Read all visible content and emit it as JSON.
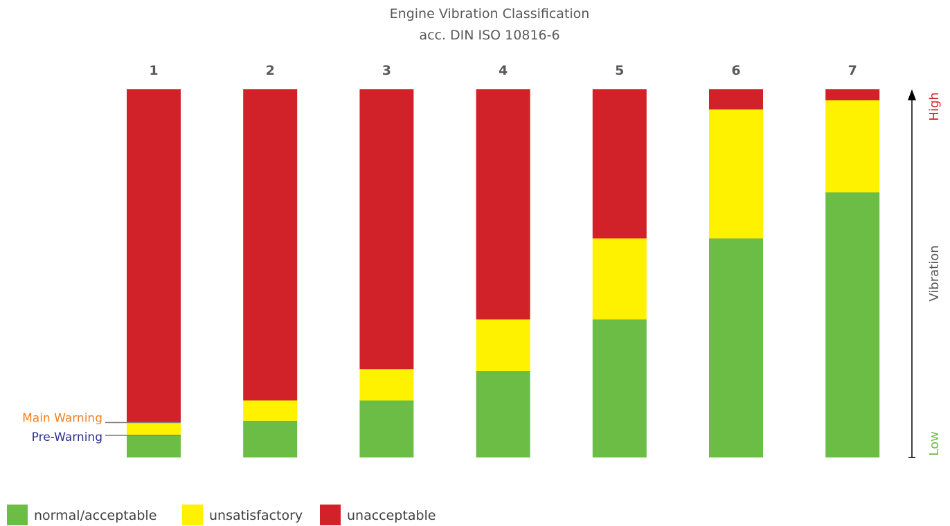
{
  "chart_data": {
    "type": "bar",
    "stacked": true,
    "title": "Engine Vibration Classification",
    "subtitle": "acc. DIN ISO 10816-6",
    "categories": [
      "1",
      "2",
      "3",
      "4",
      "5",
      "6",
      "7"
    ],
    "series": [
      {
        "name": "normal/acceptable",
        "color": "#6cbd45",
        "values": [
          6,
          10,
          15.5,
          23.5,
          37.5,
          59.5,
          72
        ]
      },
      {
        "name": "unsatisfactory",
        "color": "#fff200",
        "values": [
          3.5,
          5.5,
          8.5,
          14,
          22,
          35,
          25
        ]
      },
      {
        "name": "unacceptable",
        "color": "#d12229",
        "values": [
          90.5,
          84.5,
          76,
          62.5,
          40.5,
          5.5,
          3
        ]
      }
    ],
    "ylim": [
      0,
      100
    ],
    "y_axis": {
      "label": "Vibration",
      "low_label": "Low",
      "high_label": "High",
      "low_color": "#6cbd45",
      "high_color": "#d12229"
    },
    "grid": false,
    "legend_position": "bottom-left",
    "markers": [
      {
        "text": "Main Warning",
        "color": "#f4801f",
        "category": "1",
        "value": 9.5
      },
      {
        "text": "Pre-Warning",
        "color": "#2e3192",
        "category": "1",
        "value": 6
      }
    ]
  }
}
